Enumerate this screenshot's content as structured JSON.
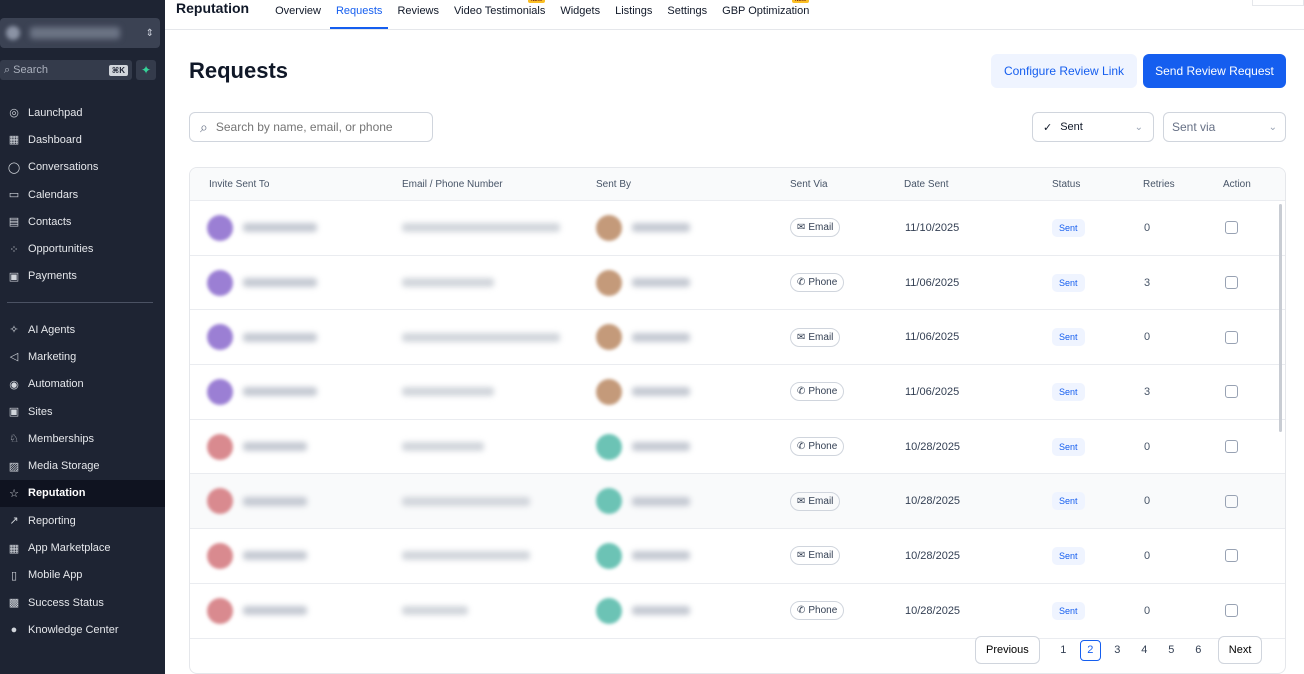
{
  "sidebar": {
    "search_placeholder": "Search",
    "search_shortcut": "⌘K",
    "items": [
      {
        "label": "Launchpad",
        "icon": "launchpad-icon",
        "glyph": "◎"
      },
      {
        "label": "Dashboard",
        "icon": "dashboard-icon",
        "glyph": "▦"
      },
      {
        "label": "Conversations",
        "icon": "chat-icon",
        "glyph": "◯"
      },
      {
        "label": "Calendars",
        "icon": "calendar-icon",
        "glyph": "▭"
      },
      {
        "label": "Contacts",
        "icon": "contacts-icon",
        "glyph": "▤"
      },
      {
        "label": "Opportunities",
        "icon": "opportunities-icon",
        "glyph": "⁘"
      },
      {
        "label": "Payments",
        "icon": "payments-icon",
        "glyph": "▣"
      },
      {
        "label": "AI Agents",
        "icon": "sparkle-icon",
        "glyph": "✧"
      },
      {
        "label": "Marketing",
        "icon": "send-icon",
        "glyph": "◁"
      },
      {
        "label": "Automation",
        "icon": "automation-icon",
        "glyph": "◉"
      },
      {
        "label": "Sites",
        "icon": "sites-icon",
        "glyph": "▣"
      },
      {
        "label": "Memberships",
        "icon": "membership-icon",
        "glyph": "♘"
      },
      {
        "label": "Media Storage",
        "icon": "image-icon",
        "glyph": "▨"
      },
      {
        "label": "Reputation",
        "icon": "star-icon",
        "glyph": "☆"
      },
      {
        "label": "Reporting",
        "icon": "trend-icon",
        "glyph": "↗"
      },
      {
        "label": "App Marketplace",
        "icon": "grid-icon",
        "glyph": "▦"
      },
      {
        "label": "Mobile App",
        "icon": "mobile-icon",
        "glyph": "▯"
      },
      {
        "label": "Success Status",
        "icon": "chart-icon",
        "glyph": "▩"
      },
      {
        "label": "Knowledge Center",
        "icon": "info-icon",
        "glyph": "●"
      }
    ]
  },
  "topnav": {
    "brand": "Reputation",
    "tabs": [
      {
        "label": "Overview",
        "active": false,
        "new": false
      },
      {
        "label": "Requests",
        "active": true,
        "new": false
      },
      {
        "label": "Reviews",
        "active": false,
        "new": false
      },
      {
        "label": "Video Testimonials",
        "active": false,
        "new": true
      },
      {
        "label": "Widgets",
        "active": false,
        "new": false
      },
      {
        "label": "Listings",
        "active": false,
        "new": false
      },
      {
        "label": "Settings",
        "active": false,
        "new": false
      },
      {
        "label": "GBP Optimization",
        "active": false,
        "new": true
      }
    ],
    "new_badge": "NEW"
  },
  "page": {
    "title": "Requests",
    "configure_label": "Configure Review Link",
    "send_label": "Send Review Request",
    "search_placeholder": "Search by name, email, or phone",
    "filter_sent": "Sent",
    "filter_via": "Sent via"
  },
  "table": {
    "headers": [
      "Invite Sent To",
      "Email / Phone Number",
      "Sent By",
      "Sent Via",
      "Date Sent",
      "Status",
      "Retries",
      "Action"
    ],
    "rows": [
      {
        "via": "Email",
        "date": "11/10/2025",
        "status": "Sent",
        "retries": "0",
        "color": "#9b7fd4",
        "by_color": "#c49a7a"
      },
      {
        "via": "Phone",
        "date": "11/06/2025",
        "status": "Sent",
        "retries": "3",
        "color": "#9b7fd4",
        "by_color": "#c49a7a"
      },
      {
        "via": "Email",
        "date": "11/06/2025",
        "status": "Sent",
        "retries": "0",
        "color": "#9b7fd4",
        "by_color": "#c49a7a"
      },
      {
        "via": "Phone",
        "date": "11/06/2025",
        "status": "Sent",
        "retries": "3",
        "color": "#9b7fd4",
        "by_color": "#c49a7a"
      },
      {
        "via": "Phone",
        "date": "10/28/2025",
        "status": "Sent",
        "retries": "0",
        "color": "#d98a8f",
        "by_color": "#6cc3b5"
      },
      {
        "via": "Email",
        "date": "10/28/2025",
        "status": "Sent",
        "retries": "0",
        "color": "#d98a8f",
        "by_color": "#6cc3b5"
      },
      {
        "via": "Email",
        "date": "10/28/2025",
        "status": "Sent",
        "retries": "0",
        "color": "#d98a8f",
        "by_color": "#6cc3b5"
      },
      {
        "via": "Phone",
        "date": "10/28/2025",
        "status": "Sent",
        "retries": "0",
        "color": "#d98a8f",
        "by_color": "#6cc3b5"
      }
    ]
  },
  "pager": {
    "previous": "Previous",
    "next": "Next",
    "pages": [
      "1",
      "2",
      "3",
      "4",
      "5",
      "6"
    ],
    "current": "2"
  },
  "colors": {
    "accent": "#155eef",
    "sidebar_bg": "#1e2433"
  }
}
